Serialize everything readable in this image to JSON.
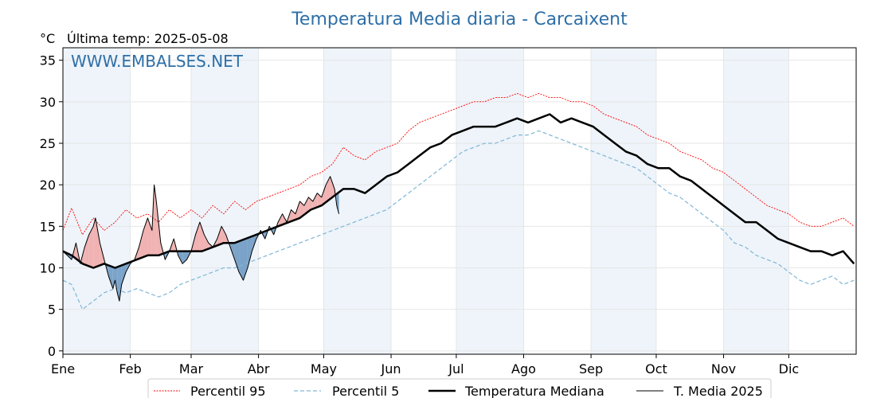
{
  "chart_data": {
    "type": "line",
    "title": "Temperatura Media diaria - Carcaixent",
    "unit_label": "°C",
    "last_temp_label": "Última temp: 2025-05-08",
    "watermark": "WWW.EMBALSES.NET",
    "ylim": [
      0,
      36
    ],
    "xlim": [
      1,
      366
    ],
    "y_ticks": [
      0,
      5,
      10,
      15,
      20,
      25,
      30,
      35
    ],
    "month_ticks": [
      {
        "label": "Ene",
        "day": 1
      },
      {
        "label": "Feb",
        "day": 32
      },
      {
        "label": "Mar",
        "day": 60
      },
      {
        "label": "Abr",
        "day": 91
      },
      {
        "label": "May",
        "day": 121
      },
      {
        "label": "Jun",
        "day": 152
      },
      {
        "label": "Jul",
        "day": 182
      },
      {
        "label": "Ago",
        "day": 213
      },
      {
        "label": "Sep",
        "day": 244
      },
      {
        "label": "Oct",
        "day": 274
      },
      {
        "label": "Nov",
        "day": 305
      },
      {
        "label": "Dic",
        "day": 335
      }
    ],
    "shaded_months": [
      [
        1,
        32
      ],
      [
        60,
        91
      ],
      [
        121,
        152
      ],
      [
        182,
        213
      ],
      [
        244,
        274
      ],
      [
        305,
        335
      ]
    ],
    "grid": true,
    "legend_position": "bottom",
    "colors": {
      "p95": "#ff0000",
      "p5": "#7fb6d6",
      "median": "#000000",
      "current": "#000000",
      "above": "#f0b2b2",
      "below": "#7ba3c9",
      "title": "#2e6fa7",
      "band": "#eef4fa"
    },
    "series": [
      {
        "name": "Percentil 95",
        "key": "p95",
        "points": [
          [
            1,
            14.5
          ],
          [
            5,
            17.2
          ],
          [
            10,
            14.0
          ],
          [
            15,
            16.0
          ],
          [
            20,
            14.5
          ],
          [
            25,
            15.5
          ],
          [
            30,
            17.0
          ],
          [
            35,
            16.0
          ],
          [
            40,
            16.5
          ],
          [
            45,
            15.5
          ],
          [
            50,
            17.0
          ],
          [
            55,
            16.0
          ],
          [
            60,
            17.0
          ],
          [
            65,
            16.0
          ],
          [
            70,
            17.5
          ],
          [
            75,
            16.5
          ],
          [
            80,
            18.0
          ],
          [
            85,
            17.0
          ],
          [
            90,
            18.0
          ],
          [
            95,
            18.5
          ],
          [
            100,
            19.0
          ],
          [
            105,
            19.5
          ],
          [
            110,
            20.0
          ],
          [
            115,
            21.0
          ],
          [
            120,
            21.5
          ],
          [
            125,
            22.5
          ],
          [
            130,
            24.5
          ],
          [
            135,
            23.5
          ],
          [
            140,
            23.0
          ],
          [
            145,
            24.0
          ],
          [
            150,
            24.5
          ],
          [
            155,
            25.0
          ],
          [
            160,
            26.5
          ],
          [
            165,
            27.5
          ],
          [
            170,
            28.0
          ],
          [
            175,
            28.5
          ],
          [
            180,
            29.0
          ],
          [
            185,
            29.5
          ],
          [
            190,
            30.0
          ],
          [
            195,
            30.0
          ],
          [
            200,
            30.5
          ],
          [
            205,
            30.5
          ],
          [
            210,
            31.0
          ],
          [
            215,
            30.5
          ],
          [
            220,
            31.0
          ],
          [
            225,
            30.5
          ],
          [
            230,
            30.5
          ],
          [
            235,
            30.0
          ],
          [
            240,
            30.0
          ],
          [
            245,
            29.5
          ],
          [
            250,
            28.5
          ],
          [
            255,
            28.0
          ],
          [
            260,
            27.5
          ],
          [
            265,
            27.0
          ],
          [
            270,
            26.0
          ],
          [
            275,
            25.5
          ],
          [
            280,
            25.0
          ],
          [
            285,
            24.0
          ],
          [
            290,
            23.5
          ],
          [
            295,
            23.0
          ],
          [
            300,
            22.0
          ],
          [
            305,
            21.5
          ],
          [
            310,
            20.5
          ],
          [
            315,
            19.5
          ],
          [
            320,
            18.5
          ],
          [
            325,
            17.5
          ],
          [
            330,
            17.0
          ],
          [
            335,
            16.5
          ],
          [
            340,
            15.5
          ],
          [
            345,
            15.0
          ],
          [
            350,
            15.0
          ],
          [
            355,
            15.5
          ],
          [
            360,
            16.0
          ],
          [
            365,
            15.0
          ]
        ]
      },
      {
        "name": "Percentil 5",
        "key": "p5",
        "points": [
          [
            1,
            8.5
          ],
          [
            5,
            8.0
          ],
          [
            10,
            5.0
          ],
          [
            15,
            6.0
          ],
          [
            20,
            7.0
          ],
          [
            25,
            7.5
          ],
          [
            30,
            7.0
          ],
          [
            35,
            7.5
          ],
          [
            40,
            7.0
          ],
          [
            45,
            6.5
          ],
          [
            50,
            7.0
          ],
          [
            55,
            8.0
          ],
          [
            60,
            8.5
          ],
          [
            65,
            9.0
          ],
          [
            70,
            9.5
          ],
          [
            75,
            10.0
          ],
          [
            80,
            10.0
          ],
          [
            85,
            10.5
          ],
          [
            90,
            11.0
          ],
          [
            95,
            11.5
          ],
          [
            100,
            12.0
          ],
          [
            105,
            12.5
          ],
          [
            110,
            13.0
          ],
          [
            115,
            13.5
          ],
          [
            120,
            14.0
          ],
          [
            125,
            14.5
          ],
          [
            130,
            15.0
          ],
          [
            135,
            15.5
          ],
          [
            140,
            16.0
          ],
          [
            145,
            16.5
          ],
          [
            150,
            17.0
          ],
          [
            155,
            18.0
          ],
          [
            160,
            19.0
          ],
          [
            165,
            20.0
          ],
          [
            170,
            21.0
          ],
          [
            175,
            22.0
          ],
          [
            180,
            23.0
          ],
          [
            185,
            24.0
          ],
          [
            190,
            24.5
          ],
          [
            195,
            25.0
          ],
          [
            200,
            25.0
          ],
          [
            205,
            25.5
          ],
          [
            210,
            26.0
          ],
          [
            215,
            26.0
          ],
          [
            220,
            26.5
          ],
          [
            225,
            26.0
          ],
          [
            230,
            25.5
          ],
          [
            235,
            25.0
          ],
          [
            240,
            24.5
          ],
          [
            245,
            24.0
          ],
          [
            250,
            23.5
          ],
          [
            255,
            23.0
          ],
          [
            260,
            22.5
          ],
          [
            265,
            22.0
          ],
          [
            270,
            21.0
          ],
          [
            275,
            20.0
          ],
          [
            280,
            19.0
          ],
          [
            285,
            18.5
          ],
          [
            290,
            17.5
          ],
          [
            295,
            16.5
          ],
          [
            300,
            15.5
          ],
          [
            305,
            14.5
          ],
          [
            310,
            13.0
          ],
          [
            315,
            12.5
          ],
          [
            320,
            11.5
          ],
          [
            325,
            11.0
          ],
          [
            330,
            10.5
          ],
          [
            335,
            9.5
          ],
          [
            340,
            8.5
          ],
          [
            345,
            8.0
          ],
          [
            350,
            8.5
          ],
          [
            355,
            9.0
          ],
          [
            360,
            8.0
          ],
          [
            365,
            8.5
          ]
        ]
      },
      {
        "name": "Temperatura Mediana",
        "key": "median",
        "points": [
          [
            1,
            12.0
          ],
          [
            5,
            11.5
          ],
          [
            10,
            10.5
          ],
          [
            15,
            10.0
          ],
          [
            20,
            10.5
          ],
          [
            25,
            10.0
          ],
          [
            30,
            10.5
          ],
          [
            35,
            11.0
          ],
          [
            40,
            11.5
          ],
          [
            45,
            11.5
          ],
          [
            50,
            12.0
          ],
          [
            55,
            12.0
          ],
          [
            60,
            12.0
          ],
          [
            65,
            12.0
          ],
          [
            70,
            12.5
          ],
          [
            75,
            13.0
          ],
          [
            80,
            13.0
          ],
          [
            85,
            13.5
          ],
          [
            90,
            14.0
          ],
          [
            95,
            14.5
          ],
          [
            100,
            15.0
          ],
          [
            105,
            15.5
          ],
          [
            110,
            16.0
          ],
          [
            115,
            17.0
          ],
          [
            120,
            17.5
          ],
          [
            125,
            18.5
          ],
          [
            130,
            19.5
          ],
          [
            135,
            19.5
          ],
          [
            140,
            19.0
          ],
          [
            145,
            20.0
          ],
          [
            150,
            21.0
          ],
          [
            155,
            21.5
          ],
          [
            160,
            22.5
          ],
          [
            165,
            23.5
          ],
          [
            170,
            24.5
          ],
          [
            175,
            25.0
          ],
          [
            180,
            26.0
          ],
          [
            185,
            26.5
          ],
          [
            190,
            27.0
          ],
          [
            195,
            27.0
          ],
          [
            200,
            27.0
          ],
          [
            205,
            27.5
          ],
          [
            210,
            28.0
          ],
          [
            215,
            27.5
          ],
          [
            220,
            28.0
          ],
          [
            225,
            28.5
          ],
          [
            230,
            27.5
          ],
          [
            235,
            28.0
          ],
          [
            240,
            27.5
          ],
          [
            245,
            27.0
          ],
          [
            250,
            26.0
          ],
          [
            255,
            25.0
          ],
          [
            260,
            24.0
          ],
          [
            265,
            23.5
          ],
          [
            270,
            22.5
          ],
          [
            275,
            22.0
          ],
          [
            280,
            22.0
          ],
          [
            285,
            21.0
          ],
          [
            290,
            20.5
          ],
          [
            295,
            19.5
          ],
          [
            300,
            18.5
          ],
          [
            305,
            17.5
          ],
          [
            310,
            16.5
          ],
          [
            315,
            15.5
          ],
          [
            320,
            15.5
          ],
          [
            325,
            14.5
          ],
          [
            330,
            13.5
          ],
          [
            335,
            13.0
          ],
          [
            340,
            12.5
          ],
          [
            345,
            12.0
          ],
          [
            350,
            12.0
          ],
          [
            355,
            11.5
          ],
          [
            360,
            12.0
          ],
          [
            365,
            10.5
          ]
        ]
      },
      {
        "name": "T. Media 2025",
        "key": "current",
        "points": [
          [
            1,
            12.0
          ],
          [
            3,
            11.5
          ],
          [
            5,
            11.0
          ],
          [
            7,
            13.0
          ],
          [
            9,
            10.5
          ],
          [
            11,
            12.5
          ],
          [
            13,
            14.0
          ],
          [
            15,
            15.0
          ],
          [
            16,
            16.0
          ],
          [
            18,
            13.0
          ],
          [
            20,
            11.0
          ],
          [
            22,
            9.0
          ],
          [
            24,
            7.5
          ],
          [
            25,
            8.5
          ],
          [
            26,
            7.0
          ],
          [
            27,
            6.0
          ],
          [
            28,
            8.0
          ],
          [
            30,
            9.5
          ],
          [
            32,
            10.5
          ],
          [
            34,
            11.0
          ],
          [
            36,
            12.5
          ],
          [
            38,
            14.5
          ],
          [
            40,
            16.0
          ],
          [
            42,
            14.5
          ],
          [
            43,
            20.0
          ],
          [
            44,
            18.0
          ],
          [
            46,
            13.0
          ],
          [
            48,
            11.0
          ],
          [
            50,
            12.0
          ],
          [
            52,
            13.5
          ],
          [
            54,
            11.5
          ],
          [
            56,
            10.5
          ],
          [
            58,
            11.0
          ],
          [
            60,
            12.0
          ],
          [
            62,
            14.0
          ],
          [
            64,
            15.5
          ],
          [
            66,
            14.0
          ],
          [
            68,
            13.0
          ],
          [
            70,
            12.5
          ],
          [
            72,
            13.5
          ],
          [
            74,
            15.0
          ],
          [
            76,
            14.0
          ],
          [
            78,
            12.5
          ],
          [
            80,
            11.0
          ],
          [
            82,
            9.5
          ],
          [
            84,
            8.5
          ],
          [
            86,
            10.0
          ],
          [
            88,
            12.0
          ],
          [
            90,
            13.5
          ],
          [
            92,
            14.5
          ],
          [
            94,
            13.5
          ],
          [
            96,
            15.0
          ],
          [
            98,
            14.0
          ],
          [
            100,
            15.5
          ],
          [
            102,
            16.5
          ],
          [
            104,
            15.5
          ],
          [
            106,
            17.0
          ],
          [
            108,
            16.5
          ],
          [
            110,
            18.0
          ],
          [
            112,
            17.5
          ],
          [
            114,
            18.5
          ],
          [
            116,
            18.0
          ],
          [
            118,
            19.0
          ],
          [
            120,
            18.5
          ],
          [
            122,
            20.0
          ],
          [
            124,
            21.0
          ],
          [
            126,
            19.5
          ],
          [
            127,
            17.5
          ],
          [
            128,
            16.5
          ]
        ]
      }
    ]
  }
}
